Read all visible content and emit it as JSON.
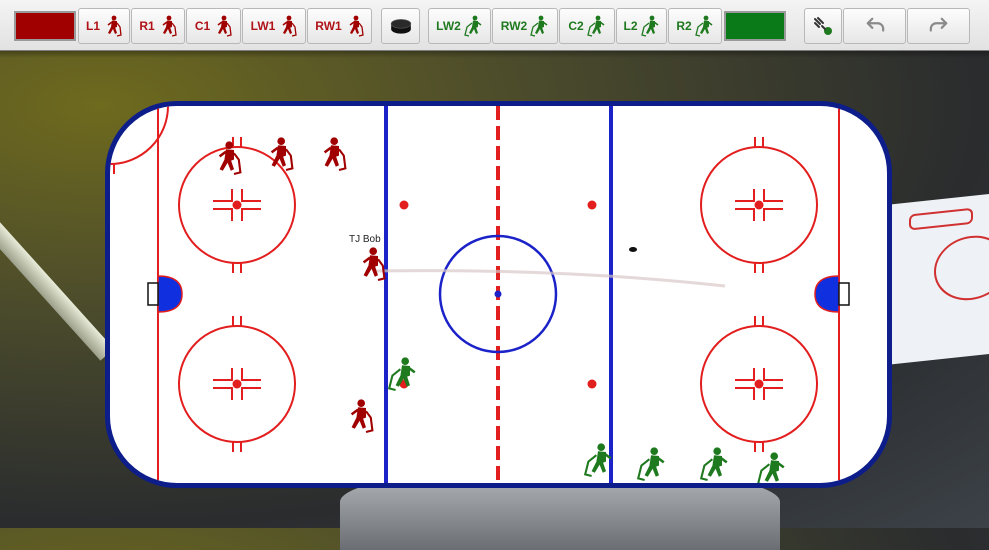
{
  "app": {
    "toolbar": {
      "home_color": "#a00000",
      "away_color": "#0a7a18",
      "home_buttons": [
        {
          "id": "l1",
          "label": "L1"
        },
        {
          "id": "r1",
          "label": "R1"
        },
        {
          "id": "c1",
          "label": "C1"
        },
        {
          "id": "lw1",
          "label": "LW1"
        },
        {
          "id": "rw1",
          "label": "RW1"
        }
      ],
      "puck_button": {
        "icon": "puck-icon"
      },
      "away_buttons": [
        {
          "id": "lw2",
          "label": "LW2"
        },
        {
          "id": "rw2",
          "label": "RW2"
        },
        {
          "id": "c2",
          "label": "C2"
        },
        {
          "id": "l2",
          "label": "L2"
        },
        {
          "id": "r2",
          "label": "R2"
        }
      ],
      "draw_button": {
        "icon": "draw-path-icon"
      },
      "undo_button": {
        "icon": "undo-icon"
      },
      "redo_button": {
        "icon": "redo-icon"
      }
    },
    "rink": {
      "player_label": "TJ Bob",
      "colors": {
        "boards": "#0d1d8a",
        "red_line": "#e21e1e",
        "blue_line": "#1a22c8",
        "crease": "#1030e0"
      }
    }
  }
}
